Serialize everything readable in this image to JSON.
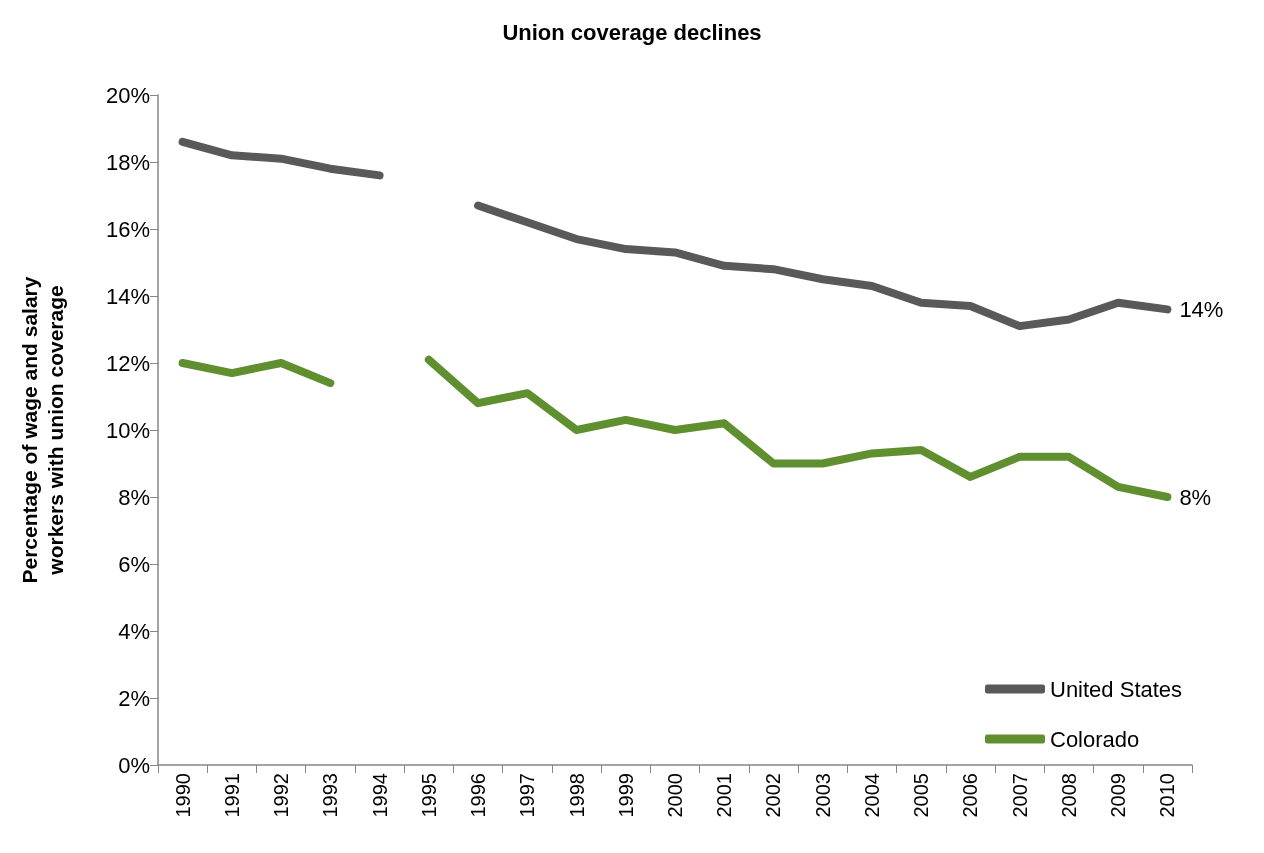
{
  "chart_data": {
    "type": "line",
    "title": "Union coverage declines",
    "ylabel": "Percentage of wage and salary workers with union coverage",
    "categories": [
      "1990",
      "1991",
      "1992",
      "1993",
      "1994",
      "1995",
      "1996",
      "1997",
      "1998",
      "1999",
      "2000",
      "2001",
      "2002",
      "2003",
      "2004",
      "2005",
      "2006",
      "2007",
      "2008",
      "2009",
      "2010"
    ],
    "series": [
      {
        "name": "United States",
        "color": "#595959",
        "values": [
          18.6,
          18.2,
          18.1,
          17.8,
          17.6,
          null,
          16.7,
          16.2,
          15.7,
          15.4,
          15.3,
          14.9,
          14.8,
          14.5,
          14.3,
          13.8,
          13.7,
          13.1,
          13.3,
          13.8,
          13.6
        ],
        "value_labels": [
          null,
          null,
          null,
          null,
          null,
          null,
          null,
          null,
          null,
          null,
          null,
          null,
          null,
          null,
          null,
          null,
          null,
          null,
          null,
          null,
          "14%"
        ]
      },
      {
        "name": "Colorado",
        "color": "#5f8f2f",
        "values": [
          12.0,
          11.7,
          12.0,
          11.4,
          null,
          12.1,
          10.8,
          11.1,
          10.0,
          10.3,
          10.0,
          10.2,
          9.0,
          9.0,
          9.3,
          9.4,
          8.6,
          9.2,
          9.2,
          8.3,
          8.0
        ],
        "value_labels": [
          null,
          null,
          null,
          null,
          null,
          null,
          null,
          null,
          null,
          null,
          null,
          null,
          null,
          null,
          null,
          null,
          null,
          null,
          null,
          null,
          "8%"
        ]
      }
    ],
    "ylim": [
      0,
      20
    ],
    "yticks": [
      {
        "value": 0,
        "label": "0%"
      },
      {
        "value": 2,
        "label": "2%"
      },
      {
        "value": 4,
        "label": "4%"
      },
      {
        "value": 6,
        "label": "6%"
      },
      {
        "value": 8,
        "label": "8%"
      },
      {
        "value": 10,
        "label": "10%"
      },
      {
        "value": 12,
        "label": "12%"
      },
      {
        "value": 14,
        "label": "14%"
      },
      {
        "value": 16,
        "label": "16%"
      },
      {
        "value": 18,
        "label": "18%"
      },
      {
        "value": 20,
        "label": "20%"
      }
    ],
    "grid": false,
    "legend": "bottom right",
    "marker": "none",
    "line_style": "solid"
  }
}
